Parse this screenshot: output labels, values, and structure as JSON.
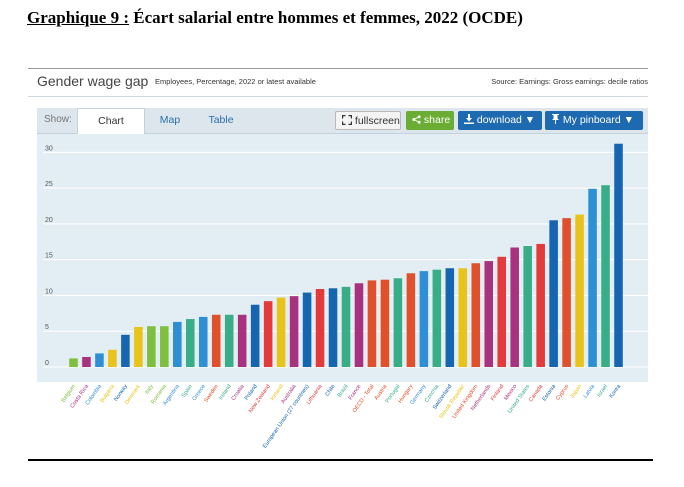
{
  "document": {
    "heading_prefix": "Graphique 9 :",
    "heading_text": "Écart salarial entre hommes et femmes, 2022 (OCDE)"
  },
  "widget": {
    "title": "Gender wage gap",
    "subtitle": "Employees, Percentage, 2022 or latest available",
    "source": "Source: Earnings: Gross earnings: decile ratios"
  },
  "toolbar": {
    "show_label": "Show:",
    "tabs": [
      {
        "label": "Chart",
        "active": true
      },
      {
        "label": "Map",
        "active": false
      },
      {
        "label": "Table",
        "active": false
      }
    ],
    "fullscreen_label": "fullscreen",
    "share_label": "share",
    "download_label": "download",
    "pinboard_label": "My pinboard",
    "fullscreen_icon": "expand-icon",
    "share_icon": "share-icon",
    "download_icon": "download-icon",
    "pinboard_icon": "pin-icon",
    "caret_icon": "caret-down-icon"
  },
  "chart_data": {
    "type": "bar",
    "categories": [
      "Belgium",
      "Costa Rica",
      "Colombia",
      "Bulgaria",
      "Norway",
      "Denmark",
      "Italy",
      "Romania",
      "Argentina",
      "Spain",
      "Greece",
      "Sweden",
      "Ireland",
      "Croatia",
      "Poland",
      "New Zealand",
      "Iceland",
      "Australia",
      "European Union (27 countries)",
      "Lithuania",
      "Chile",
      "Brazil",
      "France",
      "OECD - Total",
      "Austria",
      "Portugal",
      "Hungary",
      "Germany",
      "Czechia",
      "Switzerland",
      "Slovak Republic",
      "United Kingdom",
      "Netherlands",
      "Finland",
      "Mexico",
      "United States",
      "Canada",
      "Estonia",
      "Cyprus",
      "Japan",
      "Latvia",
      "Israel",
      "Korea"
    ],
    "values": [
      1.2,
      1.4,
      1.9,
      2.4,
      4.5,
      5.6,
      5.7,
      5.7,
      6.3,
      6.7,
      7.0,
      7.3,
      7.3,
      7.3,
      8.7,
      9.2,
      9.7,
      9.9,
      10.4,
      10.9,
      11.0,
      11.2,
      11.7,
      12.1,
      12.2,
      12.4,
      13.1,
      13.4,
      13.6,
      13.8,
      13.8,
      14.5,
      14.8,
      15.4,
      16.7,
      16.9,
      17.2,
      20.5,
      20.8,
      21.3,
      24.9,
      25.4,
      31.2
    ],
    "colors": [
      "#7fbf3f",
      "#a8327d",
      "#2f8fd5",
      "#e8c41a",
      "#1565b0",
      "#e8c41a",
      "#7fbf3f",
      "#7fbf3f",
      "#2f8fd5",
      "#38ad88",
      "#2f8fd5",
      "#e0502a",
      "#38ad88",
      "#a8327d",
      "#1565b0",
      "#e33b3b",
      "#e8c41a",
      "#a8327d",
      "#1565b0",
      "#e33b3b",
      "#1565b0",
      "#38ad88",
      "#a8327d",
      "#e0502a",
      "#e0502a",
      "#38ad88",
      "#e0502a",
      "#2f8fd5",
      "#38ad88",
      "#1565b0",
      "#e8c41a",
      "#e0502a",
      "#a8327d",
      "#e33b3b",
      "#a8327d",
      "#38ad88",
      "#e33b3b",
      "#1565b0",
      "#e0502a",
      "#e8c41a",
      "#2f8fd5",
      "#38ad88",
      "#1565b0"
    ],
    "yticks": [
      0,
      5,
      10,
      15,
      20,
      25,
      30
    ],
    "ylim": [
      0,
      32
    ],
    "grid": true,
    "legend": "none",
    "xlabel": "",
    "ylabel": ""
  }
}
